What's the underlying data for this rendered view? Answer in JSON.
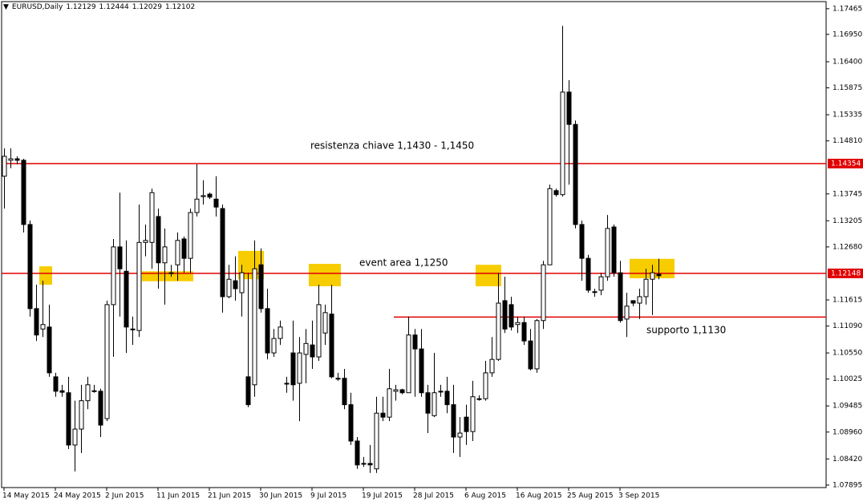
{
  "chart_data": {
    "type": "candlestick",
    "symbol": "EURUSD,Daily",
    "categories": [
      "14 May 2015",
      null,
      null,
      null,
      null,
      null,
      null,
      null,
      "24 May 2015",
      null,
      null,
      null,
      null,
      null,
      null,
      null,
      "2 Jun 2015",
      null,
      null,
      null,
      null,
      null,
      null,
      null,
      "11 Jun 2015",
      null,
      null,
      null,
      null,
      null,
      null,
      null,
      "21 Jun 2015",
      null,
      null,
      null,
      null,
      null,
      null,
      null,
      "30 Jun 2015",
      null,
      null,
      null,
      null,
      null,
      null,
      null,
      "9 Jul 2015",
      null,
      null,
      null,
      null,
      null,
      null,
      null,
      "19 Jul 2015",
      null,
      null,
      null,
      null,
      null,
      null,
      null,
      "28 Jul 2015",
      null,
      null,
      null,
      null,
      null,
      null,
      null,
      "6 Aug 2015",
      null,
      null,
      null,
      null,
      null,
      null,
      null,
      "16 Aug 2015",
      null,
      null,
      null,
      null,
      null,
      null,
      null,
      "25 Aug 2015",
      null,
      null,
      null,
      null,
      null,
      null,
      null,
      "3 Sep 2015",
      null,
      null,
      null,
      null,
      null,
      null
    ],
    "open": [
      1.141,
      1.1442,
      1.1445,
      1.1442,
      1.1313,
      1.1144,
      1.1103,
      1.1107,
      1.1007,
      1.0979,
      1.0975,
      1.087,
      1.0902,
      1.0959,
      1.0979,
      1.0978,
      1.0923,
      1.1152,
      1.1268,
      1.1219,
      1.1103,
      1.11,
      1.1277,
      1.1277,
      1.1329,
      1.1236,
      1.1216,
      1.1232,
      1.1284,
      1.1245,
      1.1337,
      1.1369,
      1.1374,
      1.1364,
      1.1345,
      1.1168,
      1.12,
      1.1176,
      1.1007,
      1.0991,
      1.1232,
      1.1144,
      1.1055,
      1.1084,
      1.0994,
      1.1055,
      1.0994,
      1.1052,
      1.1071,
      1.1047,
      1.1095,
      1.1133,
      1.1004,
      1.1004,
      1.0951,
      1.0878,
      1.0833,
      1.0833,
      1.0822,
      1.0934,
      1.0926,
      1.0978,
      1.0981,
      1.0975,
      1.1091,
      1.1063,
      1.0975,
      1.0929,
      1.0978,
      1.0978,
      1.0951,
      1.0886,
      1.0926,
      1.0897,
      1.0963,
      1.0963,
      1.1015,
      1.1042,
      1.116,
      1.1152,
      1.1112,
      1.1116,
      1.1079,
      1.1023,
      1.112,
      1.1232,
      1.1381,
      1.1373,
      1.1579,
      1.1514,
      1.1313,
      1.1245,
      1.1178,
      1.1181,
      1.1208,
      1.1308,
      1.1216,
      1.1123,
      1.116,
      1.1155,
      1.1168,
      1.1203,
      1.12129
    ],
    "high": [
      1.1466,
      1.1466,
      1.145,
      1.1445,
      1.1321,
      1.1192,
      1.12,
      1.1152,
      1.1015,
      1.0991,
      1.1007,
      1.0959,
      1.0991,
      1.1007,
      1.0991,
      1.0983,
      1.116,
      1.1284,
      1.1377,
      1.1281,
      1.1128,
      1.1353,
      1.1313,
      1.1385,
      1.1345,
      1.1305,
      1.1232,
      1.1297,
      1.1289,
      1.1345,
      1.1434,
      1.1402,
      1.1377,
      1.141,
      1.1353,
      1.1232,
      1.1249,
      1.1232,
      1.1216,
      1.1281,
      1.1265,
      1.1184,
      1.1103,
      1.112,
      1.1007,
      1.112,
      1.1087,
      1.1103,
      1.112,
      1.1192,
      1.1152,
      1.1192,
      1.1015,
      1.1023,
      1.0975,
      1.0886,
      1.0846,
      1.087,
      1.0967,
      1.0967,
      1.1023,
      1.0991,
      1.0983,
      1.1128,
      1.1103,
      1.1103,
      1.0991,
      1.1055,
      1.0991,
      1.1007,
      1.0991,
      1.0926,
      1.0951,
      1.0999,
      1.097,
      1.1039,
      1.1087,
      1.1216,
      1.1208,
      1.1168,
      1.1128,
      1.1128,
      1.1103,
      1.1123,
      1.124,
      1.1393,
      1.1385,
      1.1712,
      1.1603,
      1.1522,
      1.1321,
      1.1252,
      1.1184,
      1.1216,
      1.1332,
      1.1313,
      1.124,
      1.1176,
      1.116,
      1.1184,
      1.1224,
      1.1232,
      1.12444
    ],
    "low": [
      1.1345,
      1.1426,
      1.1434,
      1.1297,
      1.1128,
      1.1079,
      1.1087,
      1.1007,
      1.0967,
      1.0967,
      1.0862,
      1.0817,
      1.0854,
      1.0942,
      1.0975,
      1.0886,
      1.0918,
      1.1047,
      1.1128,
      1.1055,
      1.1071,
      1.1087,
      1.1249,
      1.1224,
      1.1184,
      1.1152,
      1.1208,
      1.12,
      1.1216,
      1.1216,
      1.1329,
      1.1353,
      1.1364,
      1.1329,
      1.1136,
      1.1165,
      1.116,
      1.1128,
      1.0946,
      1.0967,
      1.1136,
      1.1042,
      1.1047,
      1.1071,
      1.0975,
      1.0959,
      1.0918,
      1.0994,
      1.1023,
      1.1039,
      1.1071,
      1.1004,
      1.0999,
      1.0942,
      1.087,
      1.0822,
      1.0826,
      1.0814,
      1.0814,
      1.0918,
      1.0918,
      1.0959,
      1.0972,
      1.0975,
      1.0967,
      1.0967,
      1.0894,
      1.0926,
      1.0967,
      1.0934,
      1.0854,
      1.0846,
      1.087,
      1.0878,
      1.0959,
      1.0959,
      1.1007,
      1.1039,
      1.1095,
      1.11,
      1.1095,
      1.1071,
      1.102,
      1.1015,
      1.1103,
      1.1232,
      1.1369,
      1.1369,
      1.1393,
      1.1305,
      1.12,
      1.1176,
      1.1168,
      1.1171,
      1.12,
      1.1208,
      1.1116,
      1.1087,
      1.1149,
      1.1123,
      1.1152,
      1.1131,
      1.12029
    ],
    "close": [
      1.145,
      1.1445,
      1.1442,
      1.1313,
      1.1144,
      1.1091,
      1.1112,
      1.1015,
      1.0978,
      1.0976,
      1.087,
      1.0902,
      1.0959,
      1.0991,
      1.0978,
      1.091,
      1.1152,
      1.1268,
      1.1224,
      1.1107,
      1.1103,
      1.1277,
      1.1281,
      1.1377,
      1.1236,
      1.1268,
      1.1216,
      1.1281,
      1.1245,
      1.1337,
      1.1364,
      1.1371,
      1.1368,
      1.1348,
      1.1168,
      1.1203,
      1.1184,
      1.1216,
      1.0951,
      1.1224,
      1.1144,
      1.1055,
      1.1084,
      1.1107,
      1.0994,
      1.0991,
      1.1055,
      1.1074,
      1.1047,
      1.1152,
      1.1136,
      1.1007,
      1.1004,
      1.0951,
      1.0878,
      1.083,
      1.0833,
      1.083,
      1.0934,
      1.0926,
      1.0983,
      1.0981,
      1.0975,
      1.1091,
      1.1063,
      1.0975,
      1.0934,
      1.0975,
      1.0978,
      1.0951,
      1.0886,
      1.0894,
      1.0897,
      1.0967,
      1.0963,
      1.1015,
      1.1042,
      1.1155,
      1.1103,
      1.1107,
      1.1116,
      1.1079,
      1.1023,
      1.112,
      1.1232,
      1.1385,
      1.1373,
      1.1579,
      1.1514,
      1.1313,
      1.1245,
      1.1181,
      1.1178,
      1.1208,
      1.1305,
      1.1216,
      1.112,
      1.1149,
      1.1155,
      1.1168,
      1.1203,
      1.1216,
      1.12102
    ],
    "ylim": [
      1.07845,
      1.1764
    ],
    "yticks": [
      1.17465,
      {
        "value": 1.1695,
        "label": "1.16950"
      },
      {
        "value": 1.164,
        "label": "1.16400"
      },
      1.15875,
      1.15335,
      {
        "value": 1.1481,
        "label": "1.14810"
      },
      1.13745,
      1.13205,
      {
        "value": 1.1268,
        "label": "1.12680"
      },
      1.11615,
      {
        "value": 1.1109,
        "label": "1.11090"
      },
      {
        "value": 1.1055,
        "label": "1.10550"
      },
      1.10025,
      1.09485,
      {
        "value": 1.0896,
        "label": "1.08960"
      },
      {
        "value": 1.0842,
        "label": "1.08420"
      },
      1.07895
    ],
    "hlines": [
      {
        "value": 1.14354,
        "color": "#e00000"
      },
      {
        "value": 1.12148,
        "color": "#e00000"
      },
      {
        "value": 1.1127,
        "from": 61,
        "color": "#e00000"
      }
    ],
    "zones": [
      {
        "from": 6,
        "to": 7,
        "top": 1.1229,
        "bottom": 1.1192
      },
      {
        "from": 22,
        "to": 29,
        "top": 1.1219,
        "bottom": 1.1199
      },
      {
        "from": 37,
        "to": 40,
        "top": 1.126,
        "bottom": 1.1203
      },
      {
        "from": 48,
        "to": 52,
        "top": 1.1234,
        "bottom": 1.1189
      },
      {
        "from": 74,
        "to": 77,
        "top": 1.1232,
        "bottom": 1.1189
      },
      {
        "from": 98,
        "to": 104,
        "top": 1.1244,
        "bottom": 1.1205
      }
    ],
    "zone_color": "#f7cc00",
    "annotations": [
      "resistenza chiave 1,1430 - 1,1450",
      "event area 1,1250",
      "supporto 1,1130"
    ]
  }
}
